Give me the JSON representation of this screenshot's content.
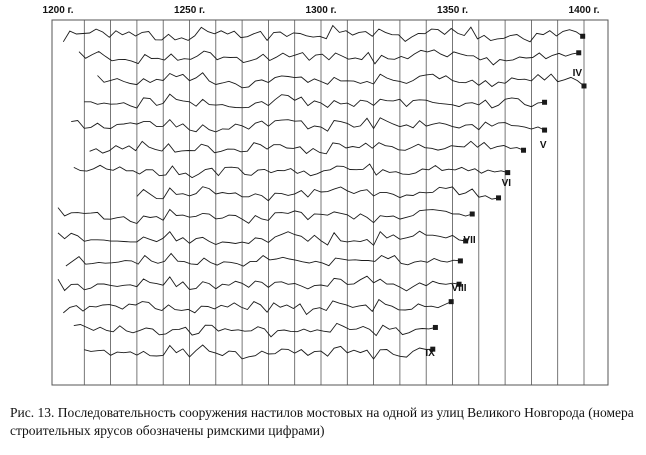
{
  "chart_data": {
    "type": "line",
    "title": "",
    "xlabel": "",
    "ylabel": "",
    "xlim": [
      1200,
      1400
    ],
    "x_ticks": [
      {
        "value": 1200,
        "label": "1200 г."
      },
      {
        "value": 1250,
        "label": "1250 г."
      },
      {
        "value": 1300,
        "label": "1300 г."
      },
      {
        "value": 1350,
        "label": "1350 г."
      },
      {
        "value": 1400,
        "label": "1400 г."
      }
    ],
    "grid": "vertical",
    "series": [
      {
        "start": 1202,
        "end": 1400,
        "offset": 0
      },
      {
        "start": 1208,
        "end": 1400,
        "offset": 1
      },
      {
        "start": 1215,
        "end": 1400,
        "offset": 2
      },
      {
        "start": 1210,
        "end": 1387,
        "offset": 3
      },
      {
        "start": 1205,
        "end": 1385,
        "offset": 4
      },
      {
        "start": 1212,
        "end": 1378,
        "offset": 5
      },
      {
        "start": 1206,
        "end": 1371,
        "offset": 6
      },
      {
        "start": 1230,
        "end": 1369,
        "offset": 7
      },
      {
        "start": 1200,
        "end": 1358,
        "offset": 8
      },
      {
        "start": 1200,
        "end": 1356,
        "offset": 9
      },
      {
        "start": 1203,
        "end": 1354,
        "offset": 10
      },
      {
        "start": 1200,
        "end": 1353,
        "offset": 11
      },
      {
        "start": 1202,
        "end": 1350,
        "offset": 12
      },
      {
        "start": 1206,
        "end": 1344,
        "offset": 13
      },
      {
        "start": 1210,
        "end": 1344,
        "offset": 14
      }
    ],
    "series_end_markers": true,
    "tier_labels": [
      {
        "label": "IV",
        "x": 1399
      },
      {
        "label": "V",
        "x": 1386
      },
      {
        "label": "VI",
        "x": 1372
      },
      {
        "label": "VII",
        "x": 1358
      },
      {
        "label": "VIII",
        "x": 1354
      },
      {
        "label": "IX",
        "x": 1343
      }
    ]
  },
  "caption": "Рис. 13. Последовательность сооружения настилов мостовых на одной из улиц Великого Новгорода (номера строительных ярусов обозначены римскими цифрами)",
  "colors": {
    "line": "#1a1a1a",
    "grid": "#555555",
    "background": "#ffffff"
  }
}
